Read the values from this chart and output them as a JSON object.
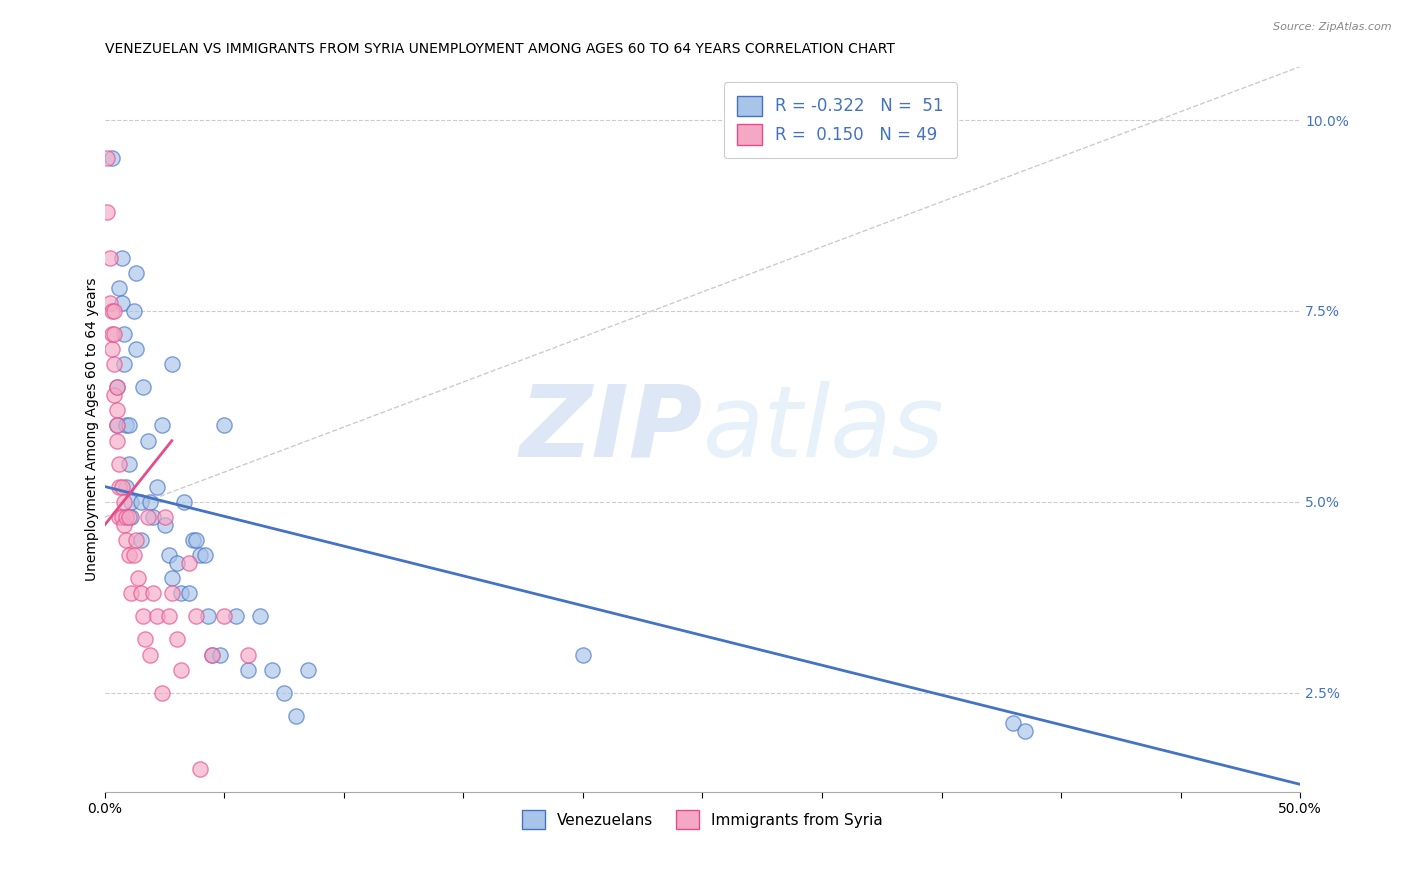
{
  "title": "VENEZUELAN VS IMMIGRANTS FROM SYRIA UNEMPLOYMENT AMONG AGES 60 TO 64 YEARS CORRELATION CHART",
  "source": "Source: ZipAtlas.com",
  "ylabel": "Unemployment Among Ages 60 to 64 years",
  "ytick_labels": [
    "2.5%",
    "5.0%",
    "7.5%",
    "10.0%"
  ],
  "ytick_values": [
    0.025,
    0.05,
    0.075,
    0.1
  ],
  "xlim": [
    0.0,
    0.5
  ],
  "ylim": [
    0.012,
    0.107
  ],
  "watermark_line1": "ZIP",
  "watermark_line2": "atlas",
  "legend_blue_label": "R = -0.322   N =  51",
  "legend_pink_label": "R =  0.150   N = 49",
  "blue_scatter_x": [
    0.003,
    0.005,
    0.005,
    0.006,
    0.007,
    0.007,
    0.008,
    0.008,
    0.009,
    0.009,
    0.01,
    0.01,
    0.011,
    0.011,
    0.012,
    0.013,
    0.013,
    0.015,
    0.015,
    0.016,
    0.018,
    0.019,
    0.02,
    0.022,
    0.024,
    0.025,
    0.027,
    0.028,
    0.028,
    0.03,
    0.032,
    0.033,
    0.035,
    0.037,
    0.038,
    0.04,
    0.042,
    0.043,
    0.045,
    0.048,
    0.05,
    0.055,
    0.06,
    0.065,
    0.07,
    0.075,
    0.08,
    0.085,
    0.2,
    0.38,
    0.385
  ],
  "blue_scatter_y": [
    0.095,
    0.065,
    0.06,
    0.078,
    0.082,
    0.076,
    0.072,
    0.068,
    0.06,
    0.052,
    0.06,
    0.055,
    0.048,
    0.05,
    0.075,
    0.08,
    0.07,
    0.05,
    0.045,
    0.065,
    0.058,
    0.05,
    0.048,
    0.052,
    0.06,
    0.047,
    0.043,
    0.04,
    0.068,
    0.042,
    0.038,
    0.05,
    0.038,
    0.045,
    0.045,
    0.043,
    0.043,
    0.035,
    0.03,
    0.03,
    0.06,
    0.035,
    0.028,
    0.035,
    0.028,
    0.025,
    0.022,
    0.028,
    0.03,
    0.021,
    0.02
  ],
  "pink_scatter_x": [
    0.001,
    0.001,
    0.002,
    0.002,
    0.003,
    0.003,
    0.003,
    0.004,
    0.004,
    0.004,
    0.004,
    0.005,
    0.005,
    0.005,
    0.005,
    0.006,
    0.006,
    0.006,
    0.007,
    0.007,
    0.008,
    0.008,
    0.009,
    0.009,
    0.01,
    0.01,
    0.011,
    0.012,
    0.013,
    0.014,
    0.015,
    0.016,
    0.017,
    0.018,
    0.019,
    0.02,
    0.022,
    0.024,
    0.025,
    0.027,
    0.028,
    0.03,
    0.032,
    0.035,
    0.038,
    0.04,
    0.045,
    0.05,
    0.06
  ],
  "pink_scatter_y": [
    0.095,
    0.088,
    0.082,
    0.076,
    0.075,
    0.072,
    0.07,
    0.075,
    0.072,
    0.068,
    0.064,
    0.065,
    0.062,
    0.06,
    0.058,
    0.055,
    0.052,
    0.048,
    0.052,
    0.048,
    0.05,
    0.047,
    0.048,
    0.045,
    0.048,
    0.043,
    0.038,
    0.043,
    0.045,
    0.04,
    0.038,
    0.035,
    0.032,
    0.048,
    0.03,
    0.038,
    0.035,
    0.025,
    0.048,
    0.035,
    0.038,
    0.032,
    0.028,
    0.042,
    0.035,
    0.015,
    0.03,
    0.035,
    0.03
  ],
  "blue_line_x": [
    0.0,
    0.5
  ],
  "blue_line_y": [
    0.052,
    0.013
  ],
  "pink_line_x": [
    0.0,
    0.028
  ],
  "pink_line_y": [
    0.047,
    0.058
  ],
  "dash_line_x": [
    0.0,
    0.5
  ],
  "dash_line_y": [
    0.048,
    0.107
  ],
  "blue_trendline_color": "#4472C4",
  "pink_trendline_color": "#E84B8A",
  "blue_scatter_color": "#A8C4E8",
  "pink_scatter_color": "#F4A8C4",
  "grid_color": "#CCCCCC",
  "background_color": "#FFFFFF",
  "title_fontsize": 10,
  "axis_label_fontsize": 10,
  "tick_fontsize": 10,
  "scatter_size": 120,
  "scatter_alpha": 0.65,
  "scatter_linewidth": 1.0
}
